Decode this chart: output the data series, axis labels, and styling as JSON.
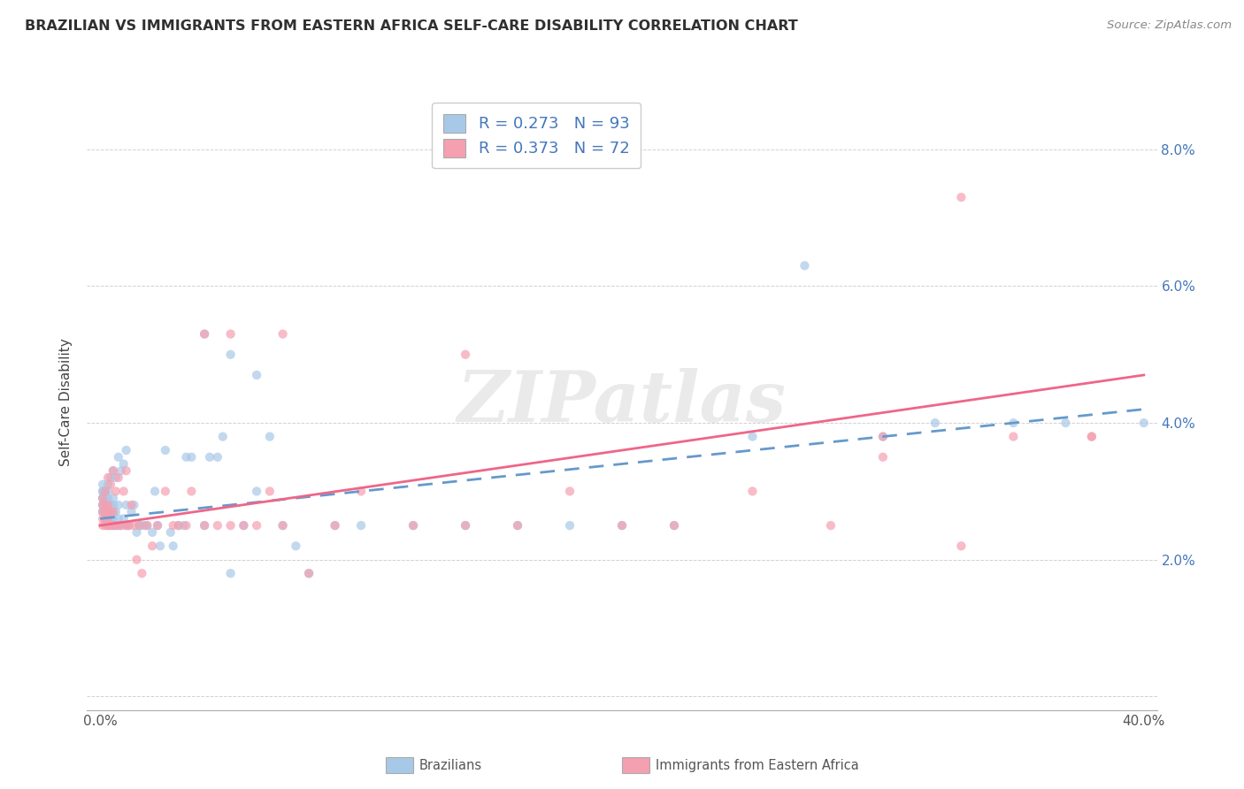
{
  "title": "BRAZILIAN VS IMMIGRANTS FROM EASTERN AFRICA SELF-CARE DISABILITY CORRELATION CHART",
  "source": "Source: ZipAtlas.com",
  "ylabel": "Self-Care Disability",
  "xlim": [
    -0.005,
    0.405
  ],
  "ylim": [
    -0.002,
    0.088
  ],
  "xtick_vals": [
    0.0,
    0.1,
    0.2,
    0.3,
    0.4
  ],
  "xticklabels": [
    "0.0%",
    "",
    "",
    "",
    "40.0%"
  ],
  "ytick_vals": [
    0.0,
    0.02,
    0.04,
    0.06,
    0.08
  ],
  "yticklabels_right": [
    "",
    "2.0%",
    "4.0%",
    "6.0%",
    "8.0%"
  ],
  "blue_color": "#A8C8E8",
  "pink_color": "#F4A0B0",
  "line_blue_color": "#6699CC",
  "line_pink_color": "#EE6688",
  "title_color": "#303030",
  "source_color": "#888888",
  "tick_color": "#4477BB",
  "watermark_text": "ZIPatlas",
  "legend_label1": "R = 0.273   N = 93",
  "legend_label2": "R = 0.373   N = 72",
  "bottom_label1": "Brazilians",
  "bottom_label2": "Immigrants from Eastern Africa",
  "blue_x": [
    0.001,
    0.001,
    0.001,
    0.001,
    0.001,
    0.001,
    0.001,
    0.001,
    0.001,
    0.002,
    0.002,
    0.002,
    0.002,
    0.002,
    0.003,
    0.003,
    0.003,
    0.003,
    0.003,
    0.003,
    0.003,
    0.004,
    0.004,
    0.004,
    0.004,
    0.004,
    0.005,
    0.005,
    0.005,
    0.005,
    0.005,
    0.005,
    0.006,
    0.006,
    0.006,
    0.007,
    0.007,
    0.007,
    0.008,
    0.008,
    0.009,
    0.009,
    0.01,
    0.01,
    0.01,
    0.011,
    0.012,
    0.013,
    0.014,
    0.015,
    0.016,
    0.017,
    0.018,
    0.02,
    0.021,
    0.022,
    0.023,
    0.025,
    0.027,
    0.028,
    0.03,
    0.032,
    0.033,
    0.035,
    0.04,
    0.042,
    0.045,
    0.047,
    0.05,
    0.055,
    0.06,
    0.065,
    0.07,
    0.075,
    0.08,
    0.09,
    0.1,
    0.12,
    0.14,
    0.16,
    0.18,
    0.2,
    0.22,
    0.25,
    0.27,
    0.3,
    0.32,
    0.35,
    0.37,
    0.4,
    0.04,
    0.05,
    0.06
  ],
  "blue_y": [
    0.027,
    0.027,
    0.028,
    0.028,
    0.029,
    0.029,
    0.03,
    0.03,
    0.031,
    0.026,
    0.027,
    0.028,
    0.029,
    0.03,
    0.025,
    0.026,
    0.027,
    0.028,
    0.029,
    0.03,
    0.031,
    0.025,
    0.026,
    0.027,
    0.028,
    0.032,
    0.025,
    0.026,
    0.027,
    0.028,
    0.029,
    0.033,
    0.025,
    0.027,
    0.032,
    0.026,
    0.028,
    0.035,
    0.025,
    0.033,
    0.026,
    0.034,
    0.025,
    0.028,
    0.036,
    0.025,
    0.027,
    0.028,
    0.024,
    0.025,
    0.025,
    0.025,
    0.025,
    0.024,
    0.03,
    0.025,
    0.022,
    0.036,
    0.024,
    0.022,
    0.025,
    0.025,
    0.035,
    0.035,
    0.025,
    0.035,
    0.035,
    0.038,
    0.018,
    0.025,
    0.03,
    0.038,
    0.025,
    0.022,
    0.018,
    0.025,
    0.025,
    0.025,
    0.025,
    0.025,
    0.025,
    0.025,
    0.025,
    0.038,
    0.063,
    0.038,
    0.04,
    0.04,
    0.04,
    0.04,
    0.053,
    0.05,
    0.047
  ],
  "pink_x": [
    0.001,
    0.001,
    0.001,
    0.001,
    0.001,
    0.002,
    0.002,
    0.002,
    0.002,
    0.002,
    0.003,
    0.003,
    0.003,
    0.003,
    0.003,
    0.004,
    0.004,
    0.004,
    0.005,
    0.005,
    0.005,
    0.006,
    0.006,
    0.007,
    0.007,
    0.008,
    0.009,
    0.01,
    0.01,
    0.011,
    0.012,
    0.013,
    0.014,
    0.015,
    0.016,
    0.018,
    0.02,
    0.022,
    0.025,
    0.028,
    0.03,
    0.033,
    0.035,
    0.04,
    0.045,
    0.05,
    0.055,
    0.06,
    0.065,
    0.07,
    0.08,
    0.09,
    0.1,
    0.12,
    0.14,
    0.16,
    0.18,
    0.2,
    0.22,
    0.25,
    0.28,
    0.3,
    0.33,
    0.35,
    0.38,
    0.04,
    0.05,
    0.07,
    0.14,
    0.3,
    0.38,
    0.33
  ],
  "pink_y": [
    0.025,
    0.026,
    0.027,
    0.028,
    0.029,
    0.025,
    0.026,
    0.027,
    0.028,
    0.03,
    0.025,
    0.026,
    0.027,
    0.028,
    0.032,
    0.025,
    0.027,
    0.031,
    0.025,
    0.027,
    0.033,
    0.025,
    0.03,
    0.025,
    0.032,
    0.025,
    0.03,
    0.025,
    0.033,
    0.025,
    0.028,
    0.025,
    0.02,
    0.025,
    0.018,
    0.025,
    0.022,
    0.025,
    0.03,
    0.025,
    0.025,
    0.025,
    0.03,
    0.025,
    0.025,
    0.025,
    0.025,
    0.025,
    0.03,
    0.025,
    0.018,
    0.025,
    0.03,
    0.025,
    0.025,
    0.025,
    0.03,
    0.025,
    0.025,
    0.03,
    0.025,
    0.038,
    0.022,
    0.038,
    0.038,
    0.053,
    0.053,
    0.053,
    0.05,
    0.035,
    0.038,
    0.073
  ],
  "line_blue_x0": 0.0,
  "line_blue_y0": 0.026,
  "line_blue_x1": 0.4,
  "line_blue_y1": 0.042,
  "line_pink_x0": 0.0,
  "line_pink_y0": 0.025,
  "line_pink_x1": 0.4,
  "line_pink_y1": 0.047
}
